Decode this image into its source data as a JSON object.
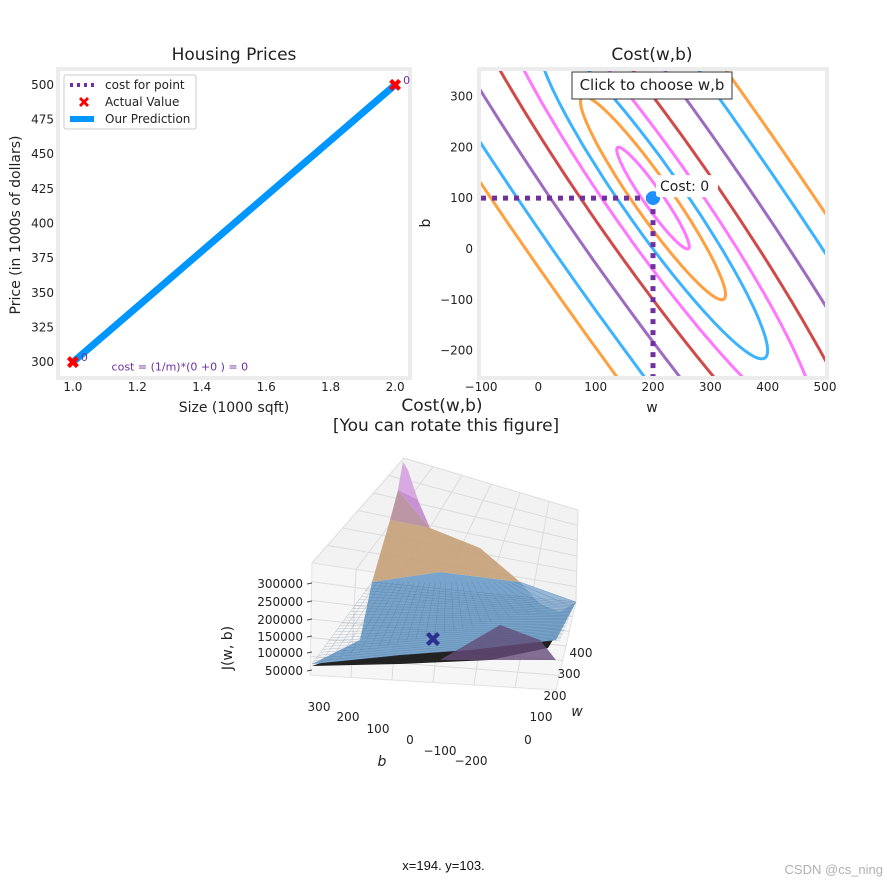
{
  "chart_data": [
    {
      "type": "line",
      "title": "Housing Prices",
      "xlabel": "Size (1000 sqft)",
      "ylabel": "Price (in 1000s of dollars)",
      "xlim": [
        0.96,
        2.04
      ],
      "ylim": [
        290,
        510
      ],
      "xticks": [
        "1.0",
        "1.2",
        "1.4",
        "1.6",
        "1.8",
        "2.0"
      ],
      "xtick_values": [
        1.0,
        1.2,
        1.4,
        1.6,
        1.8,
        2.0
      ],
      "yticks": [
        "300",
        "325",
        "350",
        "375",
        "400",
        "425",
        "450",
        "475",
        "500"
      ],
      "ytick_values": [
        300,
        325,
        350,
        375,
        400,
        425,
        450,
        475,
        500
      ],
      "actual": [
        {
          "x": 1.0,
          "y": 300,
          "label": "0"
        },
        {
          "x": 2.0,
          "y": 500,
          "label": "0"
        }
      ],
      "prediction": [
        {
          "x": 1.0,
          "y": 300
        },
        {
          "x": 2.0,
          "y": 500
        }
      ],
      "legend": [
        "cost for point",
        "Actual Value",
        "Our Prediction"
      ],
      "legend_position": "top-left",
      "cost_text": "cost = (1/m)*(0 +0 ) = 0",
      "colors": {
        "actual": "#ff0000",
        "prediction": "#0096ff",
        "cost": "#7030a0"
      }
    },
    {
      "type": "contour",
      "title": "Cost(w,b)",
      "xlabel": "w",
      "ylabel": "b",
      "xlim": [
        -100,
        500
      ],
      "ylim": [
        -250,
        350
      ],
      "xticks": [
        "−100",
        "0",
        "100",
        "200",
        "300",
        "400",
        "500"
      ],
      "xtick_values": [
        -100,
        0,
        100,
        200,
        300,
        400,
        500
      ],
      "yticks": [
        "−200",
        "−100",
        "0",
        "100",
        "200",
        "300"
      ],
      "ytick_values": [
        -200,
        -100,
        0,
        100,
        200,
        300
      ],
      "minimum": {
        "w": 200,
        "b": 100
      },
      "selected_point": {
        "w": 200,
        "b": 100
      },
      "cost_label": "Cost: 0",
      "button_label": "Click to choose w,b",
      "contour_levels": [
        500,
        2000,
        5000,
        10000,
        20000,
        40000,
        70000,
        100000
      ],
      "contour_colors": [
        "#ff77ff",
        "#ffa040",
        "#3db3ff",
        "#ff77ff",
        "#d14a4a",
        "#9d6bbf",
        "#3db3ff",
        "#ffa040",
        "#d14a4a"
      ],
      "dotted_color": "#7030a0",
      "point_color": "#1e90ff"
    },
    {
      "type": "surface",
      "title": "Cost(w,b)",
      "subtitle": "[You can rotate this figure]",
      "xlabel": "w",
      "ylabel": "b",
      "zlabel": "J(w, b)",
      "w_ticks": [
        "0",
        "100",
        "200",
        "300",
        "400"
      ],
      "b_ticks": [
        "300",
        "200",
        "100",
        "0",
        "−100",
        "−200"
      ],
      "z_ticks": [
        "50000",
        "100000",
        "150000",
        "200000",
        "250000",
        "300000"
      ],
      "band_colors": [
        "#6f9fc9",
        "#c7a27a",
        "#b88f9f",
        "#c48ad0"
      ],
      "marker_color": "#2b2f8f"
    }
  ],
  "status": {
    "coords": "x=194. y=103."
  },
  "watermark": "CSDN @cs_ning"
}
